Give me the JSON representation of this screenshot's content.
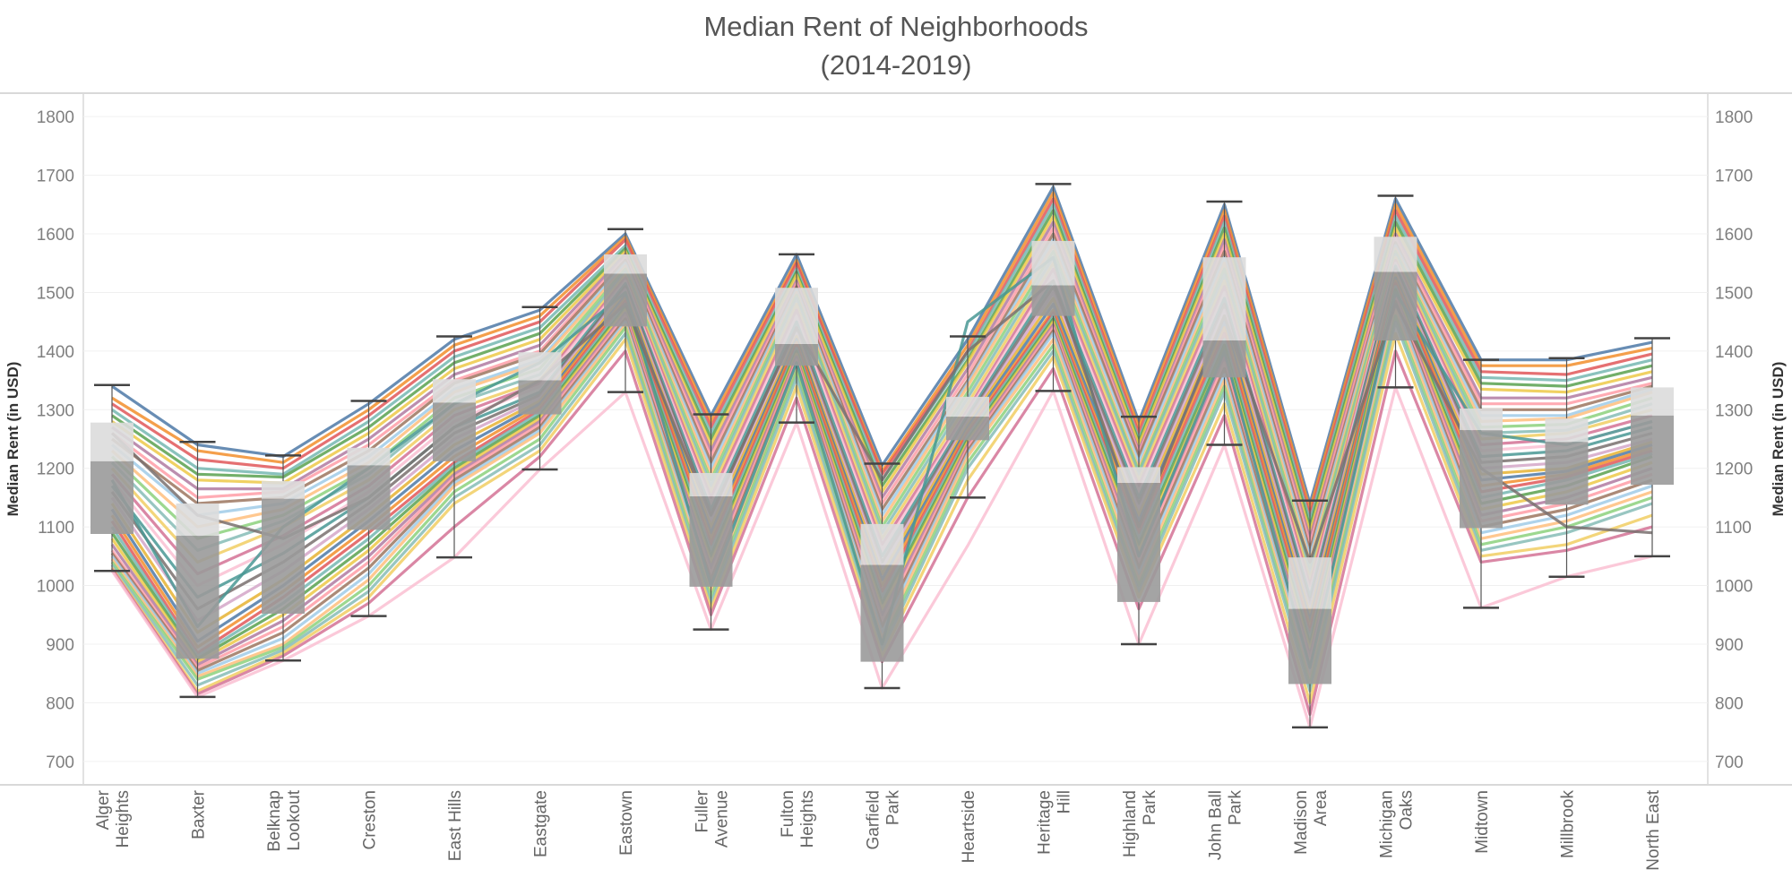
{
  "chart_data": {
    "type": "line",
    "title_lines": [
      "Median Rent of Neighborhoods",
      "(2014-2019)"
    ],
    "ylabel_left": "Median Rent (in USD)",
    "ylabel_right": "Median Rent (in USD)",
    "ylim": [
      660,
      1840
    ],
    "yticks": [
      700,
      800,
      900,
      1000,
      1100,
      1200,
      1300,
      1400,
      1500,
      1600,
      1700,
      1800
    ],
    "grid": true,
    "legend": "none",
    "categories": [
      [
        "Alger",
        "Heights"
      ],
      [
        "Baxter"
      ],
      [
        "Belknap",
        "Lookout"
      ],
      [
        "Creston"
      ],
      [
        "East Hills"
      ],
      [
        "Eastgate"
      ],
      [
        "Eastown"
      ],
      [
        "Fuller",
        "Avenue"
      ],
      [
        "Fulton",
        "Heights"
      ],
      [
        "Garfield",
        "Park"
      ],
      [
        "Heartside"
      ],
      [
        "Heritage",
        "Hill"
      ],
      [
        "Highland",
        "Park"
      ],
      [
        "John Ball",
        "Park"
      ],
      [
        "Madison",
        "Area"
      ],
      [
        "Michigan",
        "Oaks"
      ],
      [
        "Midtown"
      ],
      [
        "Millbrook"
      ],
      [
        "North East"
      ]
    ],
    "box_stats": [
      {
        "min": 1025,
        "q1": 1088,
        "median": 1212,
        "q3": 1278,
        "max": 1342
      },
      {
        "min": 810,
        "q1": 875,
        "median": 1085,
        "q3": 1140,
        "max": 1245
      },
      {
        "min": 872,
        "q1": 952,
        "median": 1148,
        "q3": 1178,
        "max": 1222
      },
      {
        "min": 948,
        "q1": 1095,
        "median": 1205,
        "q3": 1235,
        "max": 1315
      },
      {
        "min": 1048,
        "q1": 1212,
        "median": 1312,
        "q3": 1352,
        "max": 1425
      },
      {
        "min": 1198,
        "q1": 1292,
        "median": 1350,
        "q3": 1398,
        "max": 1475
      },
      {
        "min": 1330,
        "q1": 1442,
        "median": 1532,
        "q3": 1565,
        "max": 1608
      },
      {
        "min": 925,
        "q1": 998,
        "median": 1152,
        "q3": 1192,
        "max": 1292
      },
      {
        "min": 1278,
        "q1": 1375,
        "median": 1412,
        "q3": 1508,
        "max": 1565
      },
      {
        "min": 825,
        "q1": 870,
        "median": 1035,
        "q3": 1105,
        "max": 1208
      },
      {
        "min": 1150,
        "q1": 1248,
        "median": 1288,
        "q3": 1322,
        "max": 1425
      },
      {
        "min": 1332,
        "q1": 1460,
        "median": 1512,
        "q3": 1588,
        "max": 1685
      },
      {
        "min": 900,
        "q1": 972,
        "median": 1175,
        "q3": 1202,
        "max": 1288
      },
      {
        "min": 1240,
        "q1": 1355,
        "median": 1418,
        "q3": 1560,
        "max": 1655
      },
      {
        "min": 758,
        "q1": 832,
        "median": 960,
        "q3": 1048,
        "max": 1145
      },
      {
        "min": 1338,
        "q1": 1418,
        "median": 1535,
        "q3": 1595,
        "max": 1665
      },
      {
        "min": 962,
        "q1": 1098,
        "median": 1265,
        "q3": 1302,
        "max": 1385
      },
      {
        "min": 1015,
        "q1": 1138,
        "median": 1245,
        "q3": 1285,
        "max": 1388
      },
      {
        "min": 1050,
        "q1": 1172,
        "median": 1290,
        "q3": 1338,
        "max": 1422
      }
    ],
    "series_values": [
      [
        1340,
        1240,
        1220,
        1310,
        1420,
        1470,
        1600,
        1290,
        1565,
        1205,
        1420,
        1680,
        1280,
        1650,
        1140,
        1660,
        1385,
        1385,
        1415
      ],
      [
        1320,
        1230,
        1210,
        1300,
        1410,
        1460,
        1595,
        1280,
        1555,
        1195,
        1410,
        1670,
        1270,
        1640,
        1130,
        1650,
        1375,
        1375,
        1405
      ],
      [
        1310,
        1215,
        1200,
        1290,
        1400,
        1450,
        1590,
        1270,
        1550,
        1190,
        1400,
        1660,
        1260,
        1630,
        1120,
        1640,
        1365,
        1360,
        1395
      ],
      [
        1300,
        1200,
        1190,
        1280,
        1390,
        1440,
        1580,
        1260,
        1540,
        1180,
        1395,
        1650,
        1250,
        1620,
        1110,
        1630,
        1355,
        1350,
        1385
      ],
      [
        1290,
        1190,
        1185,
        1270,
        1380,
        1430,
        1575,
        1250,
        1535,
        1170,
        1385,
        1640,
        1245,
        1610,
        1100,
        1620,
        1345,
        1340,
        1375
      ],
      [
        1280,
        1180,
        1175,
        1260,
        1370,
        1420,
        1570,
        1240,
        1530,
        1160,
        1380,
        1630,
        1240,
        1600,
        1090,
        1610,
        1335,
        1330,
        1365
      ],
      [
        1270,
        1165,
        1165,
        1250,
        1360,
        1410,
        1565,
        1230,
        1520,
        1150,
        1370,
        1620,
        1230,
        1590,
        1080,
        1600,
        1320,
        1320,
        1355
      ],
      [
        1260,
        1150,
        1160,
        1240,
        1350,
        1400,
        1560,
        1220,
        1515,
        1140,
        1360,
        1610,
        1225,
        1580,
        1070,
        1595,
        1310,
        1310,
        1345
      ],
      [
        1250,
        1140,
        1150,
        1230,
        1345,
        1395,
        1555,
        1210,
        1510,
        1130,
        1350,
        1600,
        1220,
        1570,
        1060,
        1585,
        1300,
        1300,
        1340
      ],
      [
        1240,
        1120,
        1140,
        1220,
        1335,
        1385,
        1550,
        1200,
        1505,
        1120,
        1345,
        1590,
        1210,
        1560,
        1050,
        1580,
        1290,
        1290,
        1335
      ],
      [
        1230,
        1100,
        1130,
        1210,
        1330,
        1380,
        1545,
        1190,
        1500,
        1110,
        1340,
        1580,
        1200,
        1550,
        1040,
        1575,
        1280,
        1285,
        1330
      ],
      [
        1220,
        1080,
        1120,
        1200,
        1320,
        1370,
        1540,
        1180,
        1495,
        1100,
        1330,
        1570,
        1195,
        1540,
        1030,
        1570,
        1270,
        1275,
        1320
      ],
      [
        1210,
        1060,
        1110,
        1190,
        1310,
        1360,
        1535,
        1170,
        1490,
        1090,
        1320,
        1560,
        1190,
        1530,
        1020,
        1565,
        1260,
        1265,
        1310
      ],
      [
        1200,
        1040,
        1100,
        1180,
        1300,
        1350,
        1530,
        1160,
        1480,
        1080,
        1310,
        1550,
        1180,
        1520,
        1010,
        1560,
        1250,
        1260,
        1300
      ],
      [
        1190,
        1020,
        1085,
        1170,
        1290,
        1345,
        1525,
        1150,
        1470,
        1070,
        1300,
        1540,
        1170,
        1510,
        1000,
        1555,
        1240,
        1250,
        1290
      ],
      [
        1180,
        1000,
        1070,
        1160,
        1280,
        1340,
        1520,
        1140,
        1460,
        1060,
        1295,
        1530,
        1160,
        1500,
        990,
        1550,
        1230,
        1240,
        1280
      ],
      [
        1170,
        980,
        1055,
        1150,
        1270,
        1330,
        1515,
        1130,
        1450,
        1050,
        1290,
        1520,
        1150,
        1490,
        980,
        1545,
        1220,
        1230,
        1270
      ],
      [
        1160,
        960,
        1040,
        1140,
        1260,
        1325,
        1510,
        1120,
        1440,
        1040,
        1285,
        1510,
        1140,
        1480,
        970,
        1540,
        1210,
        1220,
        1260
      ],
      [
        1150,
        940,
        1025,
        1130,
        1250,
        1320,
        1505,
        1110,
        1430,
        1030,
        1280,
        1500,
        1130,
        1470,
        960,
        1535,
        1200,
        1210,
        1250
      ],
      [
        1140,
        920,
        1010,
        1120,
        1240,
        1315,
        1500,
        1100,
        1425,
        1020,
        1275,
        1490,
        1120,
        1460,
        950,
        1530,
        1190,
        1200,
        1245
      ],
      [
        1130,
        905,
        1000,
        1110,
        1230,
        1310,
        1495,
        1090,
        1420,
        1010,
        1270,
        1480,
        1110,
        1450,
        940,
        1525,
        1180,
        1195,
        1240
      ],
      [
        1120,
        895,
        990,
        1100,
        1220,
        1305,
        1490,
        1080,
        1415,
        1000,
        1265,
        1470,
        1100,
        1440,
        930,
        1520,
        1170,
        1190,
        1235
      ],
      [
        1110,
        885,
        980,
        1090,
        1210,
        1300,
        1485,
        1070,
        1410,
        990,
        1260,
        1465,
        1090,
        1430,
        920,
        1515,
        1160,
        1185,
        1230
      ],
      [
        1100,
        880,
        970,
        1080,
        1205,
        1295,
        1480,
        1060,
        1405,
        980,
        1255,
        1460,
        1080,
        1420,
        910,
        1510,
        1150,
        1180,
        1225
      ],
      [
        1090,
        875,
        960,
        1070,
        1200,
        1290,
        1475,
        1050,
        1400,
        970,
        1250,
        1455,
        1070,
        1410,
        900,
        1505,
        1140,
        1170,
        1220
      ],
      [
        1080,
        870,
        950,
        1060,
        1195,
        1285,
        1470,
        1040,
        1395,
        960,
        1245,
        1450,
        1060,
        1400,
        890,
        1500,
        1130,
        1160,
        1210
      ],
      [
        1070,
        865,
        940,
        1050,
        1190,
        1280,
        1465,
        1030,
        1390,
        950,
        1240,
        1445,
        1050,
        1390,
        880,
        1495,
        1120,
        1150,
        1200
      ],
      [
        1060,
        860,
        930,
        1040,
        1185,
        1275,
        1460,
        1020,
        1385,
        940,
        1235,
        1440,
        1040,
        1380,
        870,
        1490,
        1110,
        1140,
        1190
      ],
      [
        1055,
        855,
        920,
        1030,
        1180,
        1270,
        1455,
        1010,
        1380,
        930,
        1230,
        1435,
        1030,
        1370,
        860,
        1485,
        1100,
        1130,
        1180
      ],
      [
        1050,
        850,
        910,
        1020,
        1175,
        1265,
        1450,
        1000,
        1375,
        920,
        1225,
        1430,
        1020,
        1360,
        850,
        1480,
        1090,
        1120,
        1170
      ],
      [
        1045,
        845,
        900,
        1010,
        1170,
        1260,
        1445,
        990,
        1370,
        910,
        1220,
        1420,
        1010,
        1350,
        840,
        1470,
        1080,
        1110,
        1160
      ],
      [
        1040,
        840,
        895,
        1000,
        1160,
        1250,
        1440,
        980,
        1365,
        900,
        1210,
        1410,
        1000,
        1340,
        830,
        1460,
        1070,
        1100,
        1150
      ],
      [
        1035,
        830,
        890,
        990,
        1150,
        1240,
        1430,
        970,
        1355,
        890,
        1200,
        1400,
        990,
        1330,
        820,
        1450,
        1060,
        1090,
        1140
      ],
      [
        1030,
        820,
        885,
        980,
        1140,
        1230,
        1420,
        960,
        1340,
        880,
        1180,
        1390,
        980,
        1310,
        800,
        1430,
        1050,
        1070,
        1120
      ],
      [
        1028,
        815,
        880,
        970,
        1100,
        1220,
        1400,
        950,
        1320,
        870,
        1150,
        1370,
        960,
        1290,
        780,
        1400,
        1040,
        1060,
        1100
      ],
      [
        1025,
        810,
        872,
        948,
        1048,
        1198,
        1330,
        925,
        1278,
        825,
        1068,
        1332,
        900,
        1240,
        758,
        1338,
        962,
        1015,
        1050
      ],
      [
        1180,
        930,
        1100,
        1200,
        1310,
        1380,
        1500,
        1000,
        1380,
        900,
        1450,
        1560,
        1050,
        1400,
        860,
        1500,
        1260,
        1240,
        1280
      ],
      [
        1260,
        1120,
        1080,
        1150,
        1270,
        1350,
        1480,
        1120,
        1440,
        1180,
        1400,
        1520,
        1100,
        1460,
        1040,
        1480,
        1200,
        1100,
        1090
      ]
    ]
  }
}
